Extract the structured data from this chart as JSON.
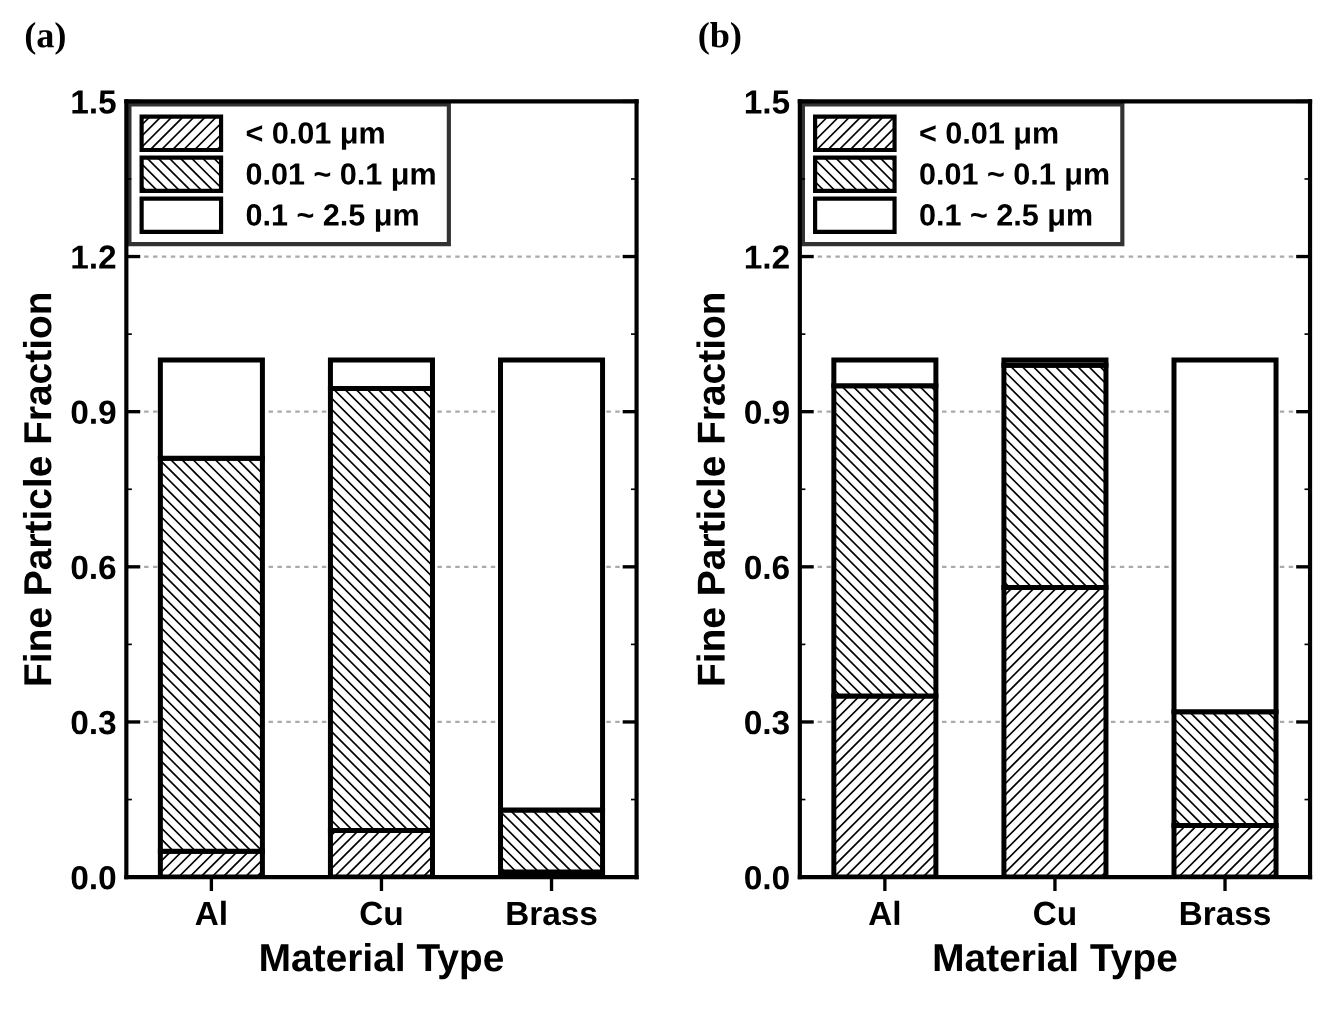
{
  "chart_data": [
    {
      "type": "bar",
      "title": "(a)",
      "xlabel": "Material Type",
      "ylabel": "Fine Particle Fraction",
      "categories": [
        "Al",
        "Cu",
        "Brass"
      ],
      "stacked": true,
      "ylim": [
        0,
        1.5
      ],
      "yticks": [
        {
          "value": 0,
          "label": "0.0"
        },
        0.3,
        0.6,
        0.9,
        1.2,
        1.5
      ],
      "grid": "y",
      "legend": "top left",
      "series": [
        {
          "name": "< 0.01 μm",
          "color": "#000000",
          "values": [
            0.05,
            0.09,
            0.01
          ]
        },
        {
          "name": "0.01 ~ 0.1 μm",
          "color": "#000000",
          "values": [
            0.76,
            0.855,
            0.12
          ]
        },
        {
          "name": "0.1 ~ 2.5 μm",
          "color": "#ffffff",
          "values": [
            0.19,
            0.055,
            0.87
          ]
        }
      ]
    },
    {
      "type": "bar",
      "title": "(b)",
      "xlabel": "Material Type",
      "ylabel": "Fine Particle Fraction",
      "categories": [
        "Al",
        "Cu",
        "Brass"
      ],
      "stacked": true,
      "ylim": [
        0,
        1.5
      ],
      "yticks": [
        {
          "value": 0,
          "label": "0.0"
        },
        0.3,
        0.6,
        0.9,
        1.2,
        1.5
      ],
      "grid": "y",
      "legend": "top left",
      "series": [
        {
          "name": "< 0.01 μm",
          "color": "#000000",
          "values": [
            0.35,
            0.56,
            0.1
          ]
        },
        {
          "name": "0.01 ~ 0.1 μm",
          "color": "#000000",
          "values": [
            0.6,
            0.43,
            0.22
          ]
        },
        {
          "name": "0.1 ~ 2.5 μm",
          "color": "#ffffff",
          "values": [
            0.05,
            0.01,
            0.68
          ]
        }
      ]
    }
  ]
}
